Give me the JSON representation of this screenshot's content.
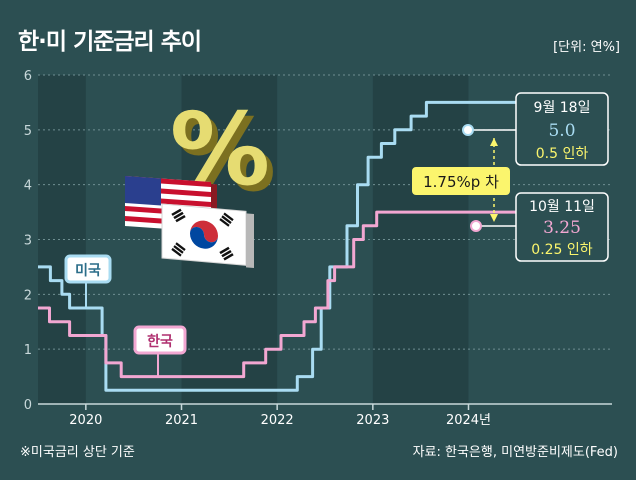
{
  "header": {
    "title": "한·미 기준금리 추이",
    "unit": "[단위: 연%]"
  },
  "footer": {
    "note": "※미국금리 상단 기준",
    "source": "자료: 한국은행, 미연방준비제도(Fed)"
  },
  "colors": {
    "background": "#2c4f52",
    "us_line": "#a9dcf2",
    "kr_line": "#f2a7d2",
    "gap_label_bg": "#fbf56d",
    "highlight_text": "#fbf56d"
  },
  "chart_data": {
    "type": "line",
    "title": "한·미 기준금리 추이",
    "unit_label": "[단위: 연%]",
    "yticks": [
      "0",
      "1",
      "2",
      "3",
      "4",
      "5",
      "6"
    ],
    "ylim": [
      0,
      6
    ],
    "xlim": [
      2019.5,
      2025.5
    ],
    "xticks": [
      {
        "x": 2020,
        "label": "2020"
      },
      {
        "x": 2021,
        "label": "2021"
      },
      {
        "x": 2022,
        "label": "2022"
      },
      {
        "x": 2023,
        "label": "2023"
      },
      {
        "x": 2024,
        "label": "2024년"
      }
    ],
    "grid": true,
    "legend": "inline labels",
    "series": [
      {
        "name": "미국",
        "color": "#a9dcf2",
        "points": [
          [
            2019.5,
            2.5
          ],
          [
            2019.63,
            2.5
          ],
          [
            2019.63,
            2.25
          ],
          [
            2019.75,
            2.25
          ],
          [
            2019.75,
            2.0
          ],
          [
            2019.83,
            2.0
          ],
          [
            2019.83,
            1.75
          ],
          [
            2020.17,
            1.75
          ],
          [
            2020.17,
            1.25
          ],
          [
            2020.21,
            1.25
          ],
          [
            2020.21,
            0.25
          ],
          [
            2022.21,
            0.25
          ],
          [
            2022.21,
            0.5
          ],
          [
            2022.37,
            0.5
          ],
          [
            2022.37,
            1.0
          ],
          [
            2022.46,
            1.0
          ],
          [
            2022.46,
            1.75
          ],
          [
            2022.55,
            1.75
          ],
          [
            2022.55,
            2.5
          ],
          [
            2022.73,
            2.5
          ],
          [
            2022.73,
            3.25
          ],
          [
            2022.84,
            3.25
          ],
          [
            2022.84,
            4.0
          ],
          [
            2022.95,
            4.0
          ],
          [
            2022.95,
            4.5
          ],
          [
            2023.09,
            4.5
          ],
          [
            2023.09,
            4.75
          ],
          [
            2023.23,
            4.75
          ],
          [
            2023.23,
            5.0
          ],
          [
            2023.4,
            5.0
          ],
          [
            2023.4,
            5.25
          ],
          [
            2023.56,
            5.25
          ],
          [
            2023.56,
            5.5
          ],
          [
            2024.71,
            5.5
          ],
          [
            2024.71,
            5.0
          ]
        ]
      },
      {
        "name": "한국",
        "color": "#f2a7d2",
        "points": [
          [
            2019.5,
            1.75
          ],
          [
            2019.62,
            1.75
          ],
          [
            2019.62,
            1.5
          ],
          [
            2019.83,
            1.5
          ],
          [
            2019.83,
            1.25
          ],
          [
            2020.21,
            1.25
          ],
          [
            2020.21,
            0.75
          ],
          [
            2020.37,
            0.75
          ],
          [
            2020.37,
            0.5
          ],
          [
            2021.65,
            0.5
          ],
          [
            2021.65,
            0.75
          ],
          [
            2021.88,
            0.75
          ],
          [
            2021.88,
            1.0
          ],
          [
            2022.04,
            1.0
          ],
          [
            2022.04,
            1.25
          ],
          [
            2022.28,
            1.25
          ],
          [
            2022.28,
            1.5
          ],
          [
            2022.4,
            1.5
          ],
          [
            2022.4,
            1.75
          ],
          [
            2022.53,
            1.75
          ],
          [
            2022.53,
            2.25
          ],
          [
            2022.6,
            2.25
          ],
          [
            2022.6,
            2.5
          ],
          [
            2022.8,
            2.5
          ],
          [
            2022.8,
            3.0
          ],
          [
            2022.9,
            3.0
          ],
          [
            2022.9,
            3.25
          ],
          [
            2023.04,
            3.25
          ],
          [
            2023.04,
            3.5
          ],
          [
            2024.78,
            3.5
          ],
          [
            2024.78,
            3.25
          ]
        ]
      }
    ],
    "annotations": [
      {
        "series": "미국",
        "date": "9월 18일",
        "value": "5.0",
        "change": "0.5 인하"
      },
      {
        "series": "한국",
        "date": "10월 11일",
        "value": "3.25",
        "change": "0.25 인하"
      },
      {
        "label": "1.75%p 차"
      }
    ]
  }
}
